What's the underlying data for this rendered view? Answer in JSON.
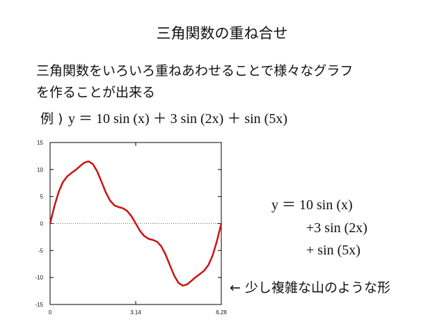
{
  "title": "三角関数の重ね合せ",
  "body": [
    "三角関数をいろいろ重ねあわせることで様々なグラフ",
    "を作ることが出来る"
  ],
  "example": {
    "prefix": "例 )",
    "formula": "y ＝ 10 sin (x) ＋ 3 sin (2x) ＋ sin (5x)"
  },
  "formula_lines": [
    "y ＝ 10 sin (x)",
    "+3 sin (2x)",
    "+ sin (5x)"
  ],
  "caption": "← 少し複雑な山のような形",
  "chart_data": {
    "type": "line",
    "color": "#cc1111",
    "zero_line": true,
    "x": [
      0,
      0.157,
      0.314,
      0.471,
      0.628,
      0.785,
      0.942,
      1.099,
      1.256,
      1.413,
      1.57,
      1.727,
      1.884,
      2.041,
      2.198,
      2.355,
      2.512,
      2.669,
      2.826,
      2.983,
      3.14,
      3.297,
      3.454,
      3.611,
      3.768,
      3.925,
      4.082,
      4.239,
      4.396,
      4.553,
      4.71,
      4.867,
      5.024,
      5.181,
      5.338,
      5.495,
      5.652,
      5.809,
      5.966,
      6.123,
      6.28
    ],
    "values": [
      0,
      3.2,
      5.85,
      7.67,
      8.73,
      9.36,
      9.94,
      10.63,
      11.28,
      11.51,
      11.0,
      9.66,
      7.75,
      5.79,
      4.25,
      3.37,
      3.04,
      2.83,
      2.33,
      1.36,
      0.01,
      -1.36,
      -2.33,
      -2.83,
      -3.04,
      -3.37,
      -4.25,
      -5.79,
      -7.75,
      -9.66,
      -11.0,
      -11.51,
      -11.28,
      -10.63,
      -9.94,
      -9.36,
      -8.73,
      -7.67,
      -5.85,
      -3.2,
      0
    ],
    "xlim": [
      0,
      6.28
    ],
    "xticks": [
      0,
      3.14,
      6.28
    ],
    "ylim": [
      -15,
      15
    ],
    "yticks": [
      -15,
      -10,
      -5,
      0,
      5,
      10,
      15
    ]
  }
}
